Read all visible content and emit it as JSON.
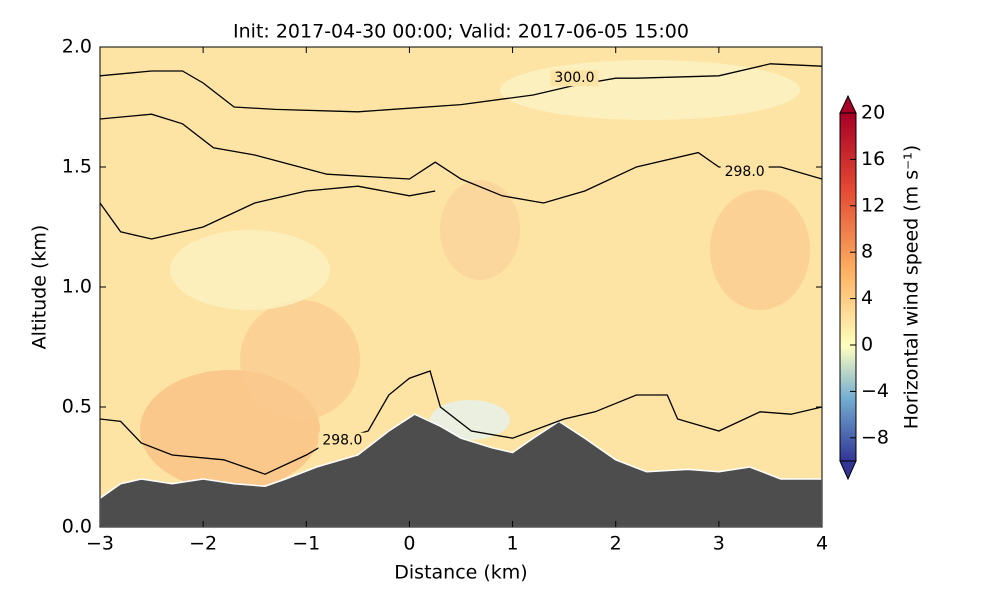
{
  "chart_data": {
    "type": "contour",
    "title": "Init: 2017-04-30 00:00; Valid: 2017-06-05 15:00",
    "x_label": "Distance (km)",
    "y_label": "Altitude (km)",
    "xlim": [
      -3,
      4
    ],
    "xticks": [
      {
        "value": -3,
        "label": "−3"
      },
      {
        "value": -2,
        "label": "−2"
      },
      {
        "value": -1,
        "label": "−1"
      },
      0,
      1,
      2,
      3,
      4
    ],
    "ylim": [
      0,
      2
    ],
    "yticks": [
      {
        "value": 0,
        "label": "0.0"
      },
      {
        "value": 0.5,
        "label": "0.5"
      },
      {
        "value": 1,
        "label": "1.0"
      },
      {
        "value": 1.5,
        "label": "1.5"
      },
      {
        "value": 2,
        "label": "2.0"
      }
    ],
    "terrain": {
      "color": "#4d4d4d",
      "x": [
        -3,
        -2.8,
        -2.6,
        -2.3,
        -2.0,
        -1.7,
        -1.4,
        -1.2,
        -0.9,
        -0.5,
        -0.2,
        0.05,
        0.3,
        0.5,
        0.8,
        1.0,
        1.2,
        1.45,
        1.7,
        2.0,
        2.3,
        2.7,
        3.0,
        3.3,
        3.6,
        4.0
      ],
      "y": [
        0.12,
        0.18,
        0.2,
        0.18,
        0.2,
        0.18,
        0.17,
        0.2,
        0.25,
        0.3,
        0.4,
        0.47,
        0.42,
        0.37,
        0.33,
        0.31,
        0.37,
        0.44,
        0.37,
        0.28,
        0.23,
        0.24,
        0.23,
        0.25,
        0.2,
        0.2
      ]
    },
    "contours": [
      {
        "x": [
          -3,
          -2.5,
          -2.2,
          -2.0,
          -1.7,
          -1.3,
          -0.5,
          0.5,
          1.2,
          1.6,
          2.0,
          2.2,
          3.0,
          3.5,
          4.0
        ],
        "y": [
          1.88,
          1.9,
          1.9,
          1.85,
          1.75,
          1.74,
          1.73,
          1.76,
          1.8,
          1.84,
          1.87,
          1.87,
          1.88,
          1.93,
          1.92
        ]
      },
      {
        "x": [
          -3,
          -2.5,
          -2.2,
          -1.9,
          -1.5,
          -0.8,
          0,
          0.25,
          0.5,
          0.9,
          1.3,
          1.7,
          2.2,
          2.8,
          3.0,
          3.6,
          4.0
        ],
        "y": [
          1.7,
          1.72,
          1.68,
          1.58,
          1.55,
          1.47,
          1.45,
          1.52,
          1.45,
          1.38,
          1.35,
          1.4,
          1.5,
          1.56,
          1.5,
          1.5,
          1.45
        ]
      },
      {
        "x": [
          -3,
          -2.8,
          -2.5,
          -2.0,
          -1.5,
          -1.0,
          -0.5,
          0.0,
          0.25
        ],
        "y": [
          1.35,
          1.23,
          1.2,
          1.25,
          1.35,
          1.4,
          1.42,
          1.38,
          1.4
        ]
      },
      {
        "x": [
          -3,
          -2.8,
          -2.6,
          -2.3,
          -1.8,
          -1.4,
          -1.0,
          -0.8,
          -0.4,
          -0.2,
          0,
          0.2,
          0.3,
          0.6,
          1.0,
          1.5,
          1.8,
          2.2,
          2.5,
          2.6,
          3.0,
          3.4,
          3.7,
          4.0
        ],
        "y": [
          0.45,
          0.44,
          0.35,
          0.3,
          0.28,
          0.22,
          0.3,
          0.35,
          0.4,
          0.55,
          0.62,
          0.65,
          0.5,
          0.4,
          0.37,
          0.45,
          0.48,
          0.55,
          0.55,
          0.45,
          0.4,
          0.48,
          0.47,
          0.5
        ]
      }
    ],
    "contour_labels": [
      {
        "text": "300.0",
        "x": 1.6,
        "y": 1.87
      },
      {
        "text": "298.0",
        "x": 3.25,
        "y": 1.48
      },
      {
        "text": "298.0",
        "x": -0.65,
        "y": 0.36
      }
    ],
    "colorbar": {
      "label": "Horizontal wind speed (m s⁻¹)",
      "lim": [
        -10,
        20
      ],
      "ticks": [
        {
          "value": -8,
          "label": "−8"
        },
        {
          "value": -4,
          "label": "−4"
        },
        0,
        4,
        8,
        12,
        16,
        20
      ]
    }
  }
}
